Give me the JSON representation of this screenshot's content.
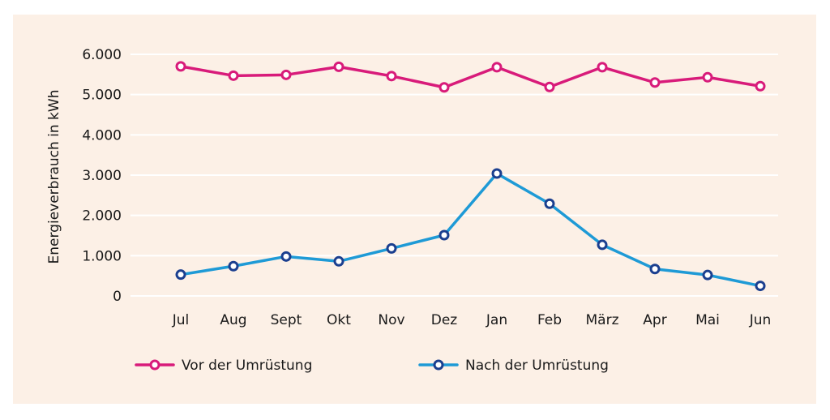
{
  "chart_data": {
    "type": "line",
    "title": "",
    "xlabel": "",
    "ylabel": "Energieverbrauch in kWh",
    "ylim": [
      0,
      6000
    ],
    "yticks": [
      0,
      1000,
      2000,
      3000,
      4000,
      5000,
      6000
    ],
    "ytick_labels": [
      "0",
      "1.000",
      "2.000",
      "3.000",
      "4.000",
      "5.000",
      "6.000"
    ],
    "grid": true,
    "legend_position": "bottom",
    "categories": [
      "Jul",
      "Aug",
      "Sept",
      "Okt",
      "Nov",
      "Dez",
      "Jan",
      "Feb",
      "März",
      "Apr",
      "Mai",
      "Jun"
    ],
    "series": [
      {
        "name": "Vor der Umrüstung",
        "color": "#d81b7a",
        "values": [
          5700,
          5470,
          5490,
          5690,
          5460,
          5180,
          5680,
          5190,
          5680,
          5300,
          5430,
          5210
        ]
      },
      {
        "name": "Nach der Umrüstung",
        "color": "#1e9ad6",
        "marker_color": "#1b3f8f",
        "values": [
          530,
          740,
          980,
          860,
          1180,
          1510,
          3040,
          2290,
          1270,
          670,
          520,
          250
        ]
      }
    ]
  }
}
